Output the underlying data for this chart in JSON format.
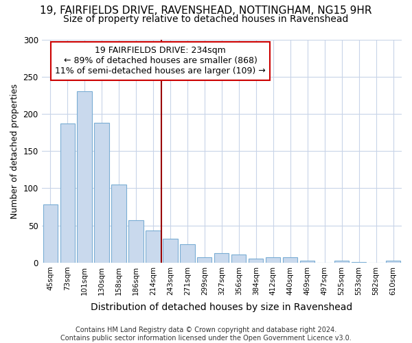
{
  "title_line1": "19, FAIRFIELDS DRIVE, RAVENSHEAD, NOTTINGHAM, NG15 9HR",
  "title_line2": "Size of property relative to detached houses in Ravenshead",
  "xlabel": "Distribution of detached houses by size in Ravenshead",
  "ylabel": "Number of detached properties",
  "categories": [
    "45sqm",
    "73sqm",
    "101sqm",
    "130sqm",
    "158sqm",
    "186sqm",
    "214sqm",
    "243sqm",
    "271sqm",
    "299sqm",
    "327sqm",
    "356sqm",
    "384sqm",
    "412sqm",
    "440sqm",
    "469sqm",
    "497sqm",
    "525sqm",
    "553sqm",
    "582sqm",
    "610sqm"
  ],
  "values": [
    78,
    187,
    230,
    188,
    105,
    57,
    43,
    32,
    25,
    7,
    13,
    11,
    5,
    7,
    7,
    3,
    0,
    3,
    1,
    0,
    3
  ],
  "bar_color": "#c9d9ed",
  "bar_edge_color": "#7aadd4",
  "vline_x_index": 7,
  "vline_color": "#990000",
  "annotation_text": "19 FAIRFIELDS DRIVE: 234sqm\n← 89% of detached houses are smaller (868)\n11% of semi-detached houses are larger (109) →",
  "annotation_box_facecolor": "#ffffff",
  "annotation_box_edgecolor": "#cc0000",
  "ylim": [
    0,
    300
  ],
  "yticks": [
    0,
    50,
    100,
    150,
    200,
    250,
    300
  ],
  "background_color": "#ffffff",
  "plot_bg_color": "#ffffff",
  "grid_color": "#c8d4e8",
  "footer_text": "Contains HM Land Registry data © Crown copyright and database right 2024.\nContains public sector information licensed under the Open Government Licence v3.0.",
  "title_fontsize": 11,
  "subtitle_fontsize": 10,
  "xlabel_fontsize": 10,
  "ylabel_fontsize": 9,
  "footer_fontsize": 7,
  "annot_fontsize": 9
}
